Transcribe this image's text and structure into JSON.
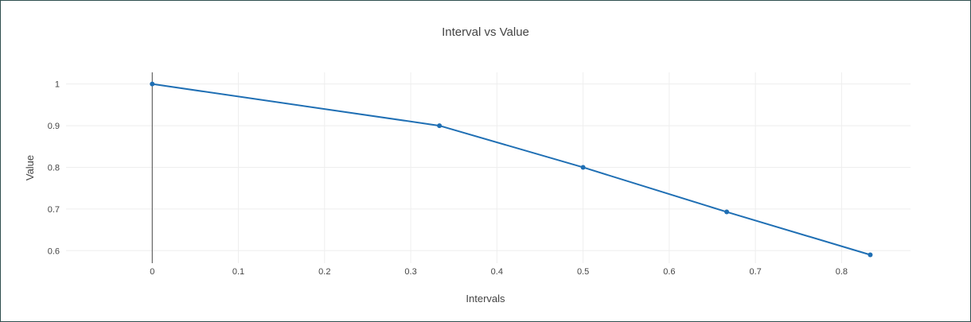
{
  "chart_data": {
    "type": "line",
    "title": "Interval vs Value",
    "xlabel": "Intervals",
    "ylabel": "Value",
    "x": [
      0,
      0.3333,
      0.5,
      0.6667,
      0.8333
    ],
    "series": [
      {
        "values": [
          1.0,
          0.9,
          0.8,
          0.693,
          0.59
        ]
      }
    ],
    "xlim": [
      -0.1,
      0.88
    ],
    "ylim": [
      0.57,
      1.028
    ],
    "xticks": [
      "0",
      "0.1",
      "0.2",
      "0.3",
      "0.4",
      "0.5",
      "0.6",
      "0.7",
      "0.8"
    ],
    "yticks": [
      "0.6",
      "0.7",
      "0.8",
      "0.9",
      "1"
    ],
    "grid": true,
    "line_color": "#1f6fb4"
  }
}
